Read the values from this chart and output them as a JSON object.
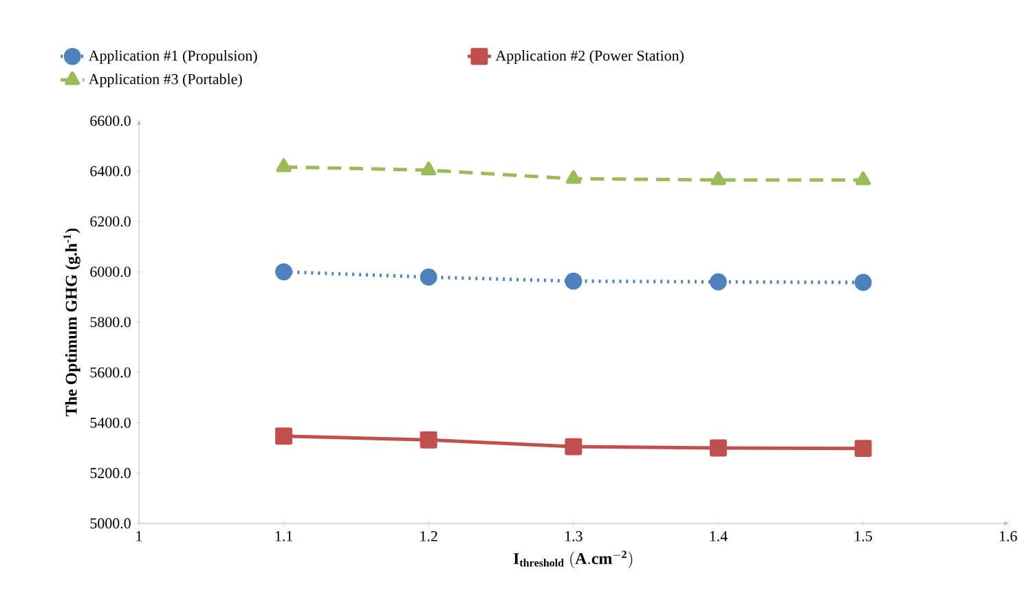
{
  "chart_data": {
    "type": "line",
    "xlabel": "\\mathbf{I_{threshold}\\ (A.cm^{-2})}",
    "ylabel": "The Optimum GHG (g.h$^{-1}$)",
    "x": [
      1.1,
      1.2,
      1.3,
      1.4,
      1.5
    ],
    "series": [
      {
        "name": "Application #1 (Propulsion)",
        "color": "#4f81bd",
        "marker": "circle",
        "line_style": "dotted",
        "values": [
          6000,
          5979,
          5963,
          5960,
          5958
        ]
      },
      {
        "name": "Application #2 (Power Station)",
        "color": "#c0504d",
        "marker": "square",
        "line_style": "solid",
        "values": [
          5347,
          5332,
          5305,
          5300,
          5298
        ]
      },
      {
        "name": "Application #3 (Portable)",
        "color": "#9bbb59",
        "marker": "triangle",
        "line_style": "dashed",
        "values": [
          6417,
          6404,
          6370,
          6365,
          6365
        ]
      }
    ],
    "xlim": [
      1,
      1.6
    ],
    "xticks": [
      1,
      1.1,
      1.2,
      1.3,
      1.4,
      1.5,
      1.6
    ],
    "ylim": [
      5000,
      6600
    ],
    "yticks": [
      {
        "value": 5000,
        "label": "5000.0"
      },
      {
        "value": 5200,
        "label": "5200.0"
      },
      {
        "value": 5400,
        "label": "5400.0"
      },
      {
        "value": 5600,
        "label": "5600.0"
      },
      {
        "value": 5800,
        "label": "5800.0"
      },
      {
        "value": 6000,
        "label": "6000.0"
      },
      {
        "value": 6200,
        "label": "6200.0"
      },
      {
        "value": 6400,
        "label": "6400.0"
      },
      {
        "value": 6600,
        "label": "6600.0"
      }
    ],
    "legend": "top",
    "grid": false
  }
}
